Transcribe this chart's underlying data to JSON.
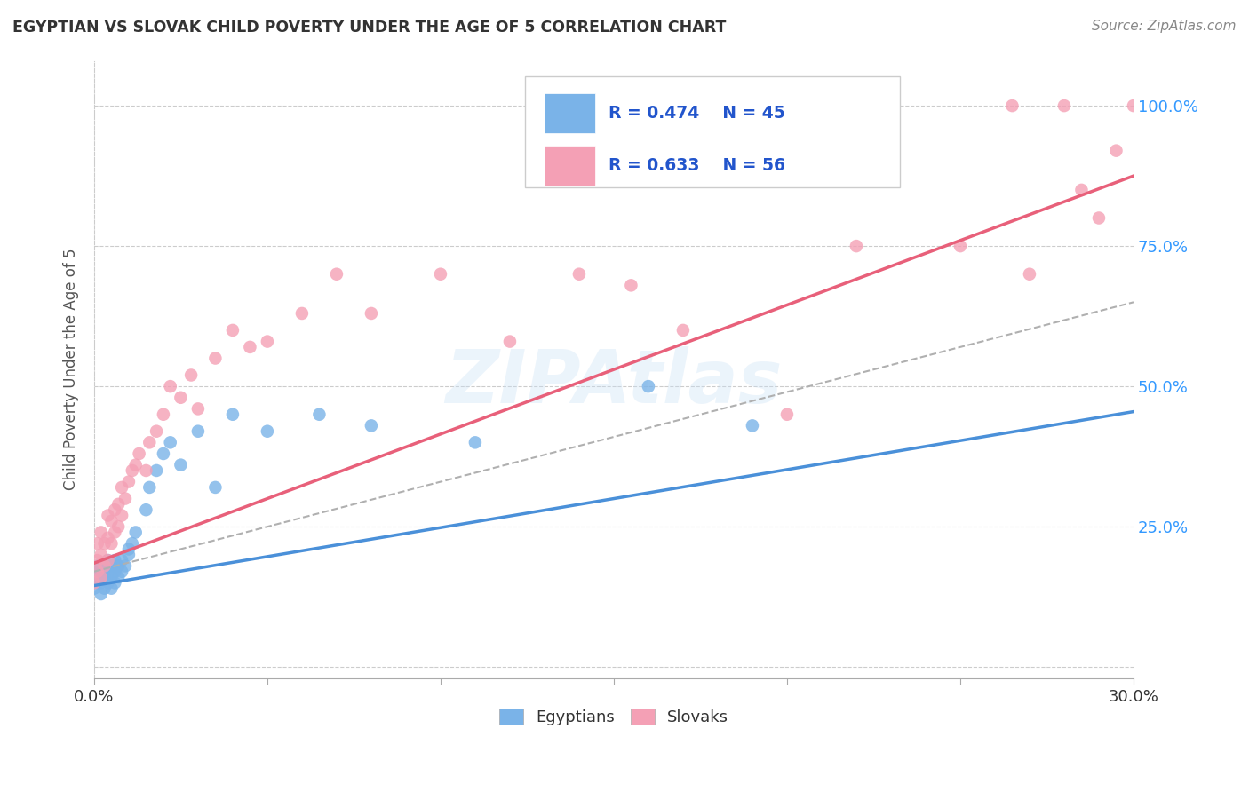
{
  "title": "EGYPTIAN VS SLOVAK CHILD POVERTY UNDER THE AGE OF 5 CORRELATION CHART",
  "source": "Source: ZipAtlas.com",
  "ylabel": "Child Poverty Under the Age of 5",
  "xlim": [
    0.0,
    0.3
  ],
  "ylim": [
    -0.02,
    1.08
  ],
  "xticks": [
    0.0,
    0.05,
    0.1,
    0.15,
    0.2,
    0.25,
    0.3
  ],
  "xtick_labels": [
    "0.0%",
    "",
    "",
    "",
    "",
    "",
    "30.0%"
  ],
  "ytick_positions": [
    0.0,
    0.25,
    0.5,
    0.75,
    1.0
  ],
  "ytick_labels": [
    "",
    "25.0%",
    "50.0%",
    "75.0%",
    "100.0%"
  ],
  "watermark": "ZIPAtlas",
  "legend_R_egyptian": "R = 0.474",
  "legend_N_egyptian": "N = 45",
  "legend_R_slovak": "R = 0.633",
  "legend_N_slovak": "N = 56",
  "color_egyptian": "#7ab3e8",
  "color_slovak": "#f4a0b5",
  "color_trend_egyptian": "#4a90d9",
  "color_trend_slovak": "#e8607a",
  "color_trend_dashed": "#b0b0b0",
  "title_color": "#333333",
  "axis_label_color": "#555555",
  "tick_color_x": "#333333",
  "tick_color_y": "#3399ff",
  "background_color": "#ffffff",
  "grid_color": "#cccccc",
  "egyptian_x": [
    0.0,
    0.001,
    0.001,
    0.001,
    0.001,
    0.002,
    0.002,
    0.002,
    0.002,
    0.003,
    0.003,
    0.003,
    0.004,
    0.004,
    0.004,
    0.005,
    0.005,
    0.005,
    0.006,
    0.006,
    0.006,
    0.007,
    0.007,
    0.008,
    0.008,
    0.009,
    0.01,
    0.01,
    0.011,
    0.012,
    0.015,
    0.016,
    0.018,
    0.02,
    0.022,
    0.025,
    0.03,
    0.035,
    0.04,
    0.05,
    0.065,
    0.08,
    0.11,
    0.16,
    0.19
  ],
  "egyptian_y": [
    0.14,
    0.15,
    0.16,
    0.17,
    0.18,
    0.13,
    0.15,
    0.17,
    0.18,
    0.14,
    0.16,
    0.18,
    0.15,
    0.17,
    0.19,
    0.14,
    0.16,
    0.18,
    0.15,
    0.17,
    0.19,
    0.16,
    0.18,
    0.17,
    0.19,
    0.18,
    0.2,
    0.21,
    0.22,
    0.24,
    0.28,
    0.32,
    0.35,
    0.38,
    0.4,
    0.36,
    0.42,
    0.32,
    0.45,
    0.42,
    0.45,
    0.43,
    0.4,
    0.5,
    0.43
  ],
  "slovak_x": [
    0.0,
    0.001,
    0.001,
    0.001,
    0.002,
    0.002,
    0.002,
    0.003,
    0.003,
    0.004,
    0.004,
    0.004,
    0.005,
    0.005,
    0.006,
    0.006,
    0.007,
    0.007,
    0.008,
    0.008,
    0.009,
    0.01,
    0.011,
    0.012,
    0.013,
    0.015,
    0.016,
    0.018,
    0.02,
    0.022,
    0.025,
    0.028,
    0.03,
    0.035,
    0.04,
    0.045,
    0.05,
    0.06,
    0.07,
    0.08,
    0.1,
    0.12,
    0.14,
    0.155,
    0.17,
    0.18,
    0.2,
    0.22,
    0.25,
    0.265,
    0.27,
    0.28,
    0.285,
    0.29,
    0.295,
    0.3
  ],
  "slovak_y": [
    0.15,
    0.17,
    0.19,
    0.22,
    0.16,
    0.2,
    0.24,
    0.18,
    0.22,
    0.19,
    0.23,
    0.27,
    0.22,
    0.26,
    0.24,
    0.28,
    0.25,
    0.29,
    0.27,
    0.32,
    0.3,
    0.33,
    0.35,
    0.36,
    0.38,
    0.35,
    0.4,
    0.42,
    0.45,
    0.5,
    0.48,
    0.52,
    0.46,
    0.55,
    0.6,
    0.57,
    0.58,
    0.63,
    0.7,
    0.63,
    0.7,
    0.58,
    0.7,
    0.68,
    0.6,
    1.0,
    0.45,
    0.75,
    0.75,
    1.0,
    0.7,
    1.0,
    0.85,
    0.8,
    0.92,
    1.0
  ],
  "eg_trend_x": [
    0.0,
    0.3
  ],
  "eg_trend_y": [
    0.145,
    0.455
  ],
  "sk_trend_x": [
    0.0,
    0.3
  ],
  "sk_trend_y": [
    0.185,
    0.875
  ],
  "dash_trend_x": [
    0.0,
    0.3
  ],
  "dash_trend_y": [
    0.17,
    0.65
  ]
}
